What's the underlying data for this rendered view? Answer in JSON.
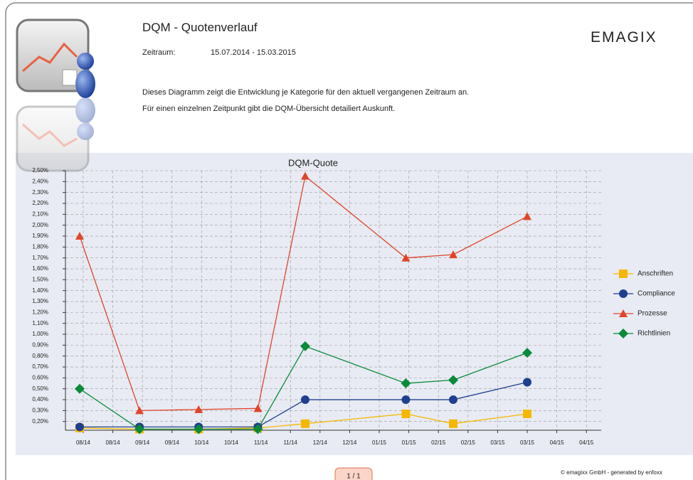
{
  "header": {
    "title": "DQM - Quotenverlauf",
    "period_label": "Zeitraum:",
    "period": "15.07.2014 - 15.03.2015",
    "logo": "EMAGIX",
    "description": [
      "Dieses Diagramm zeigt die Entwicklung je Kategorie für den aktuell vergangenen Zeitraum an.",
      "Für einen einzelnen Zeitpunkt gibt die DQM-Übersicht detailiert Auskunft."
    ]
  },
  "footer": {
    "page": "1 / 1",
    "copyright": "© emagixx GmbH - generated by enfoxx"
  },
  "chart_data": {
    "type": "line",
    "title": "DQM-Quote",
    "x": [
      7.19,
      8.2,
      9.2,
      10.2,
      11.0,
      12.7,
      13.5,
      14.75
    ],
    "xlim": [
      6.95,
      16.0
    ],
    "xticks": [
      {
        "value": 7.25,
        "label": "08/14"
      },
      {
        "value": 7.75,
        "label": "08/14"
      },
      {
        "value": 8.25,
        "label": "09/14"
      },
      {
        "value": 8.75,
        "label": "09/14"
      },
      {
        "value": 9.25,
        "label": "10/14"
      },
      {
        "value": 9.75,
        "label": "10/14"
      },
      {
        "value": 10.25,
        "label": "11/14"
      },
      {
        "value": 10.75,
        "label": "11/14"
      },
      {
        "value": 11.25,
        "label": "12/14"
      },
      {
        "value": 11.75,
        "label": "12/14"
      },
      {
        "value": 12.25,
        "label": "01/15"
      },
      {
        "value": 12.75,
        "label": "01/15"
      },
      {
        "value": 13.25,
        "label": "02/15"
      },
      {
        "value": 13.75,
        "label": "02/15"
      },
      {
        "value": 14.25,
        "label": "03/15"
      },
      {
        "value": 14.75,
        "label": "03/15"
      },
      {
        "value": 15.25,
        "label": "04/15"
      },
      {
        "value": 15.75,
        "label": "04/15"
      }
    ],
    "ylim": [
      0.12,
      2.5
    ],
    "yticks": [
      {
        "value": 0.2,
        "label": "0,20%"
      },
      {
        "value": 0.3,
        "label": "0,30%"
      },
      {
        "value": 0.4,
        "label": "0,40%"
      },
      {
        "value": 0.5,
        "label": "0,50%"
      },
      {
        "value": 0.6,
        "label": "0,60%"
      },
      {
        "value": 0.7,
        "label": "0,70%"
      },
      {
        "value": 0.8,
        "label": "0,80%"
      },
      {
        "value": 0.9,
        "label": "0,90%"
      },
      {
        "value": 1.0,
        "label": "1,00%"
      },
      {
        "value": 1.1,
        "label": "1,10%"
      },
      {
        "value": 1.2,
        "label": "1,20%"
      },
      {
        "value": 1.3,
        "label": "1,30%"
      },
      {
        "value": 1.4,
        "label": "1,40%"
      },
      {
        "value": 1.5,
        "label": "1,50%"
      },
      {
        "value": 1.6,
        "label": "1,60%"
      },
      {
        "value": 1.7,
        "label": "1,70%"
      },
      {
        "value": 1.8,
        "label": "1,80%"
      },
      {
        "value": 1.9,
        "label": "1,90%"
      },
      {
        "value": 2.0,
        "label": "2,00%"
      },
      {
        "value": 2.1,
        "label": "2,10%"
      },
      {
        "value": 2.2,
        "label": "2,20%"
      },
      {
        "value": 2.3,
        "label": "2,30%"
      },
      {
        "value": 2.4,
        "label": "2,40%"
      },
      {
        "value": 2.5,
        "label": "2,50%"
      }
    ],
    "grid": true,
    "legend": "right",
    "series": [
      {
        "name": "Anschriften",
        "color": "#f5b800",
        "marker": "square",
        "values": [
          0.14,
          0.13,
          0.13,
          0.14,
          0.18,
          0.27,
          0.18,
          0.27
        ]
      },
      {
        "name": "Compliance",
        "color": "#1f3f8f",
        "marker": "circle",
        "values": [
          0.15,
          0.15,
          0.15,
          0.15,
          0.4,
          0.4,
          0.4,
          0.56
        ]
      },
      {
        "name": "Prozesse",
        "color": "#e0452a",
        "marker": "triangle",
        "values": [
          1.9,
          0.3,
          0.31,
          0.32,
          2.45,
          1.7,
          1.73,
          2.08
        ]
      },
      {
        "name": "Richtlinien",
        "color": "#0a8a3a",
        "marker": "diamond",
        "values": [
          0.5,
          0.13,
          0.13,
          0.13,
          0.89,
          0.55,
          0.58,
          0.83
        ]
      }
    ]
  }
}
